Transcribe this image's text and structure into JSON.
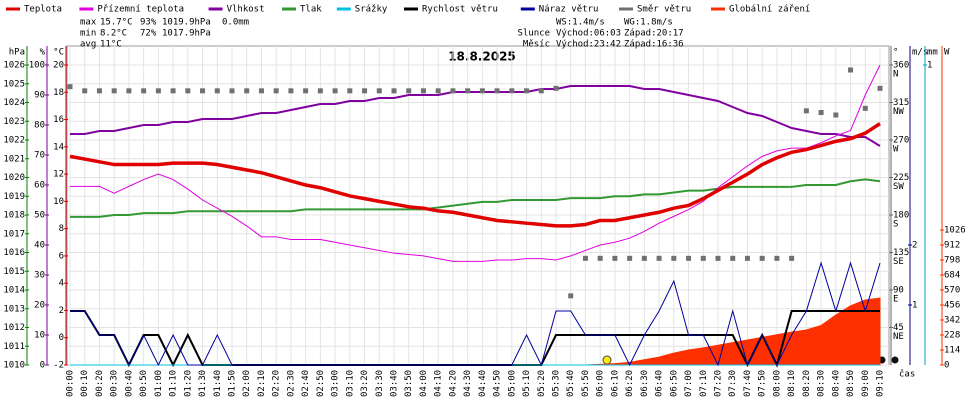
{
  "chart_data": {
    "type": "line",
    "title": "18.8.2025",
    "x_label": "čas",
    "x": [
      "00:00",
      "00:10",
      "00:20",
      "00:30",
      "00:40",
      "00:50",
      "01:00",
      "01:10",
      "01:20",
      "01:30",
      "01:40",
      "01:50",
      "02:00",
      "02:10",
      "02:20",
      "02:30",
      "02:40",
      "02:50",
      "03:00",
      "03:10",
      "03:20",
      "03:30",
      "03:40",
      "03:50",
      "04:00",
      "04:10",
      "04:20",
      "04:30",
      "04:40",
      "04:50",
      "05:00",
      "05:10",
      "05:20",
      "05:30",
      "05:40",
      "05:50",
      "06:00",
      "06:10",
      "06:20",
      "06:30",
      "06:40",
      "06:50",
      "07:00",
      "07:10",
      "07:20",
      "07:30",
      "07:40",
      "07:50",
      "08:00",
      "08:10",
      "08:20",
      "08:30",
      "08:40",
      "08:50",
      "09:00",
      "09:10"
    ],
    "grid": true,
    "axes": [
      {
        "id": "pres",
        "unit": "hPa",
        "color": "#008000",
        "side": "left",
        "lim": [
          1010,
          1026
        ],
        "ticks": [
          1010,
          1011,
          1012,
          1013,
          1014,
          1015,
          1016,
          1017,
          1018,
          1019,
          1020,
          1021,
          1022,
          1023,
          1024,
          1025,
          1026
        ]
      },
      {
        "id": "hum",
        "unit": "%",
        "color": "#8000a0",
        "side": "left",
        "lim": [
          0,
          100
        ],
        "ticks": [
          0,
          10,
          20,
          30,
          40,
          50,
          60,
          70,
          80,
          90,
          100
        ]
      },
      {
        "id": "temp",
        "unit": "°C",
        "color": "#e00000",
        "side": "left",
        "lim": [
          -2,
          20
        ],
        "ticks": [
          -2,
          0,
          2,
          4,
          6,
          8,
          10,
          12,
          14,
          16,
          18,
          20
        ]
      },
      {
        "id": "dir",
        "unit": "°",
        "color": "#666666",
        "side": "right",
        "lim": [
          0,
          360
        ],
        "ticks": [
          45,
          90,
          135,
          180,
          225,
          270,
          315,
          360
        ],
        "compass": [
          "NE",
          "E",
          "SE",
          "S",
          "SW",
          "W",
          "NW",
          "N"
        ]
      },
      {
        "id": "wind",
        "unit": "m/s",
        "color": "#000080",
        "side": "right",
        "lim": [
          0,
          5
        ],
        "ticks": [
          1,
          2
        ]
      },
      {
        "id": "rain",
        "unit": "mm",
        "color": "#00a0c0",
        "side": "right",
        "lim": [
          0,
          1
        ],
        "ticks": [
          1
        ]
      },
      {
        "id": "rad",
        "unit": "W",
        "color": "#ff3000",
        "side": "right",
        "lim": [
          0,
          2280
        ],
        "ticks": [
          0,
          114,
          228,
          342,
          456,
          570,
          684,
          798,
          912,
          1026
        ]
      }
    ],
    "series": [
      {
        "name": "Teplota",
        "color": "#e00000",
        "axis": "temp",
        "style": "thick",
        "values": [
          13.3,
          13.1,
          12.9,
          12.7,
          12.7,
          12.7,
          12.7,
          12.8,
          12.8,
          12.8,
          12.7,
          12.5,
          12.3,
          12.1,
          11.8,
          11.5,
          11.2,
          11.0,
          10.7,
          10.4,
          10.2,
          10.0,
          9.8,
          9.6,
          9.5,
          9.3,
          9.2,
          9.0,
          8.8,
          8.6,
          8.5,
          8.4,
          8.3,
          8.2,
          8.2,
          8.3,
          8.6,
          8.6,
          8.8,
          9.0,
          9.2,
          9.5,
          9.7,
          10.2,
          10.8,
          11.4,
          12.0,
          12.7,
          13.2,
          13.6,
          13.8,
          14.1,
          14.4,
          14.6,
          15.0,
          15.7
        ]
      },
      {
        "name": "Přízemní teplota",
        "color": "#e000e0",
        "axis": "temp",
        "style": "line",
        "values": [
          11.1,
          11.1,
          11.1,
          10.6,
          11.1,
          11.6,
          12.0,
          11.6,
          10.9,
          10.1,
          9.5,
          8.9,
          8.2,
          7.4,
          7.4,
          7.2,
          7.2,
          7.2,
          7.0,
          6.8,
          6.6,
          6.4,
          6.2,
          6.1,
          6.0,
          5.8,
          5.6,
          5.6,
          5.6,
          5.7,
          5.7,
          5.8,
          5.8,
          5.7,
          6.0,
          6.4,
          6.8,
          7.0,
          7.3,
          7.8,
          8.4,
          8.9,
          9.4,
          10.0,
          11.0,
          11.8,
          12.6,
          13.3,
          13.7,
          13.9,
          13.9,
          14.3,
          14.8,
          15.2,
          17.8,
          20.0
        ]
      },
      {
        "name": "Vlhkost",
        "color": "#8000a0",
        "axis": "hum",
        "style": "line2",
        "values": [
          77,
          77,
          78,
          78,
          79,
          80,
          80,
          81,
          81,
          82,
          82,
          82,
          83,
          84,
          84,
          85,
          86,
          87,
          87,
          88,
          88,
          89,
          89,
          90,
          90,
          90,
          91,
          91,
          91,
          91,
          91,
          91,
          92,
          92,
          93,
          93,
          93,
          93,
          93,
          92,
          92,
          91,
          90,
          89,
          88,
          86,
          84,
          83,
          81,
          79,
          78,
          77,
          77,
          76,
          76,
          73
        ]
      },
      {
        "name": "Tlak",
        "color": "#339933",
        "axis": "pres",
        "style": "line2",
        "values": [
          1017.9,
          1017.9,
          1017.9,
          1018.0,
          1018.0,
          1018.1,
          1018.1,
          1018.1,
          1018.2,
          1018.2,
          1018.2,
          1018.2,
          1018.2,
          1018.2,
          1018.2,
          1018.2,
          1018.3,
          1018.3,
          1018.3,
          1018.3,
          1018.3,
          1018.3,
          1018.3,
          1018.3,
          1018.3,
          1018.4,
          1018.5,
          1018.6,
          1018.7,
          1018.7,
          1018.8,
          1018.8,
          1018.8,
          1018.8,
          1018.9,
          1018.9,
          1018.9,
          1019.0,
          1019.0,
          1019.1,
          1019.1,
          1019.2,
          1019.3,
          1019.3,
          1019.4,
          1019.5,
          1019.5,
          1019.5,
          1019.5,
          1019.5,
          1019.6,
          1019.6,
          1019.6,
          1019.8,
          1019.9,
          1019.8
        ]
      },
      {
        "name": "Srážky",
        "color": "#00c0e0",
        "axis": "rain",
        "style": "line",
        "values": [
          0,
          0,
          0,
          0,
          0,
          0,
          0,
          0,
          0,
          0,
          0,
          0,
          0,
          0,
          0,
          0,
          0,
          0,
          0,
          0,
          0,
          0,
          0,
          0,
          0,
          0,
          0,
          0,
          0,
          0,
          0,
          0,
          0,
          0,
          0,
          0,
          0,
          0,
          0,
          0,
          0,
          0,
          0,
          0,
          0,
          0,
          0,
          0,
          0,
          0,
          0,
          0,
          0,
          0,
          0,
          0
        ]
      },
      {
        "name": "Rychlost větru",
        "color": "#000000",
        "axis": "wind",
        "style": "line2",
        "values": [
          0.9,
          0.9,
          0.5,
          0.5,
          0,
          0.5,
          0.5,
          0,
          0.5,
          0,
          0,
          0,
          0,
          0,
          0,
          0,
          0,
          0,
          0,
          0,
          0,
          0,
          0,
          0,
          0,
          0,
          0,
          0,
          0,
          0,
          0,
          0,
          0,
          0.5,
          0.5,
          0.5,
          0.5,
          0.5,
          0.5,
          0.5,
          0.5,
          0.5,
          0.5,
          0.5,
          0.5,
          0.5,
          0,
          0.5,
          0,
          0.9,
          0.9,
          0.9,
          0.9,
          0.9,
          0.9,
          0.9
        ]
      },
      {
        "name": "Náraz větru",
        "color": "#0000a0",
        "axis": "wind",
        "style": "line",
        "values": [
          0.9,
          0.9,
          0.5,
          0.5,
          0,
          0.5,
          0,
          0.5,
          0,
          0,
          0.5,
          0,
          0,
          0,
          0,
          0,
          0,
          0,
          0,
          0,
          0,
          0,
          0,
          0,
          0,
          0,
          0,
          0,
          0,
          0,
          0,
          0.5,
          0,
          0.9,
          0.9,
          0.5,
          0.5,
          0.5,
          0,
          0.5,
          0.9,
          1.4,
          0.5,
          0.5,
          0,
          0.9,
          0,
          0.5,
          0,
          0.5,
          0.9,
          1.7,
          0.9,
          1.7,
          0.9,
          1.7
        ]
      },
      {
        "name": "Směr větru",
        "color": "#707070",
        "axis": "dir",
        "style": "dots",
        "values": [
          334,
          329,
          329,
          329,
          329,
          329,
          329,
          329,
          329,
          329,
          329,
          329,
          329,
          329,
          329,
          329,
          329,
          329,
          329,
          329,
          329,
          329,
          329,
          329,
          329,
          329,
          329,
          329,
          329,
          329,
          329,
          329,
          329,
          332,
          83,
          128,
          128,
          128,
          128,
          128,
          128,
          128,
          128,
          128,
          128,
          128,
          128,
          128,
          128,
          128,
          305,
          303,
          300,
          354,
          308,
          332
        ]
      },
      {
        "name": "Globální záření",
        "color": "#ff3000",
        "axis": "rad",
        "style": "area",
        "values": [
          0,
          0,
          0,
          0,
          0,
          0,
          0,
          0,
          0,
          0,
          0,
          0,
          0,
          0,
          0,
          0,
          0,
          0,
          0,
          0,
          0,
          0,
          0,
          0,
          0,
          0,
          0,
          0,
          0,
          0,
          0,
          0,
          0,
          0,
          0,
          0,
          5,
          10,
          20,
          40,
          60,
          90,
          114,
          130,
          150,
          170,
          190,
          210,
          230,
          250,
          266,
          300,
          380,
          450,
          494,
          509
        ]
      }
    ],
    "stats": [
      {
        "label": "max",
        "cells": [
          "15.7°C",
          "93%",
          "1019.9hPa",
          "0.0mm"
        ]
      },
      {
        "label": "min",
        "cells": [
          "8.2°C",
          "72%",
          "1017.9hPa"
        ]
      },
      {
        "label": "avg",
        "cells": [
          "11°C"
        ]
      }
    ],
    "info": [
      {
        "label": "",
        "cells": [
          "WS:1.4m/s",
          "WG:1.8m/s"
        ]
      },
      {
        "label": "Slunce",
        "cells": [
          "Východ:06:03",
          "Západ:20:17"
        ]
      },
      {
        "label": "Měsíc",
        "cells": [
          "Východ:23:42",
          "Západ:16:36"
        ]
      }
    ]
  }
}
